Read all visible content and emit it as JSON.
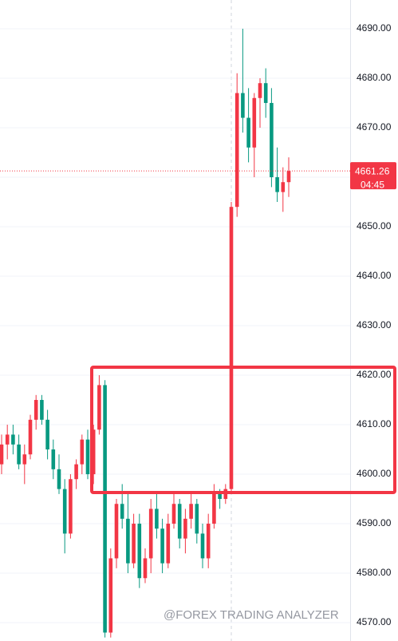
{
  "chart_data": {
    "type": "candlestick",
    "ylim": [
      4566.3,
      4695.8
    ],
    "yticks": [
      {
        "value": 4570,
        "label": "4570.00"
      },
      {
        "value": 4580,
        "label": "4580.00"
      },
      {
        "value": 4590,
        "label": "4590.00"
      },
      {
        "value": 4600,
        "label": "4600.00"
      },
      {
        "value": 4610,
        "label": "4610.00"
      },
      {
        "value": 4620,
        "label": "4620.00"
      },
      {
        "value": 4630,
        "label": "4630.00"
      },
      {
        "value": 4640,
        "label": "4640.00"
      },
      {
        "value": 4650,
        "label": "4650.00"
      },
      {
        "value": 4660,
        "label": "4660.00"
      },
      {
        "value": 4670,
        "label": "4670.00"
      },
      {
        "value": 4680,
        "label": "4680.00"
      },
      {
        "value": 4690,
        "label": "4690.00"
      }
    ],
    "grid": true,
    "up_color": "#f23645",
    "down_color": "#089981",
    "open": [
      4602,
      4606,
      4608,
      4606,
      4602,
      4604,
      4611,
      4615,
      4611,
      4605,
      4601,
      4597,
      4588,
      4599,
      4602,
      4607,
      4600,
      4609,
      4618,
      4568,
      4583,
      4594,
      4591,
      4582,
      4590,
      4579,
      4583,
      4593,
      4589,
      4582,
      4590,
      4594,
      4587,
      4591,
      4594,
      4588,
      4583,
      4590,
      4596,
      4595,
      4597,
      4654,
      4677,
      4672,
      4666,
      4676,
      4679,
      4675,
      4660,
      4657,
      4659
    ],
    "high": [
      4608,
      4610,
      4610,
      4608,
      4606,
      4612,
      4616,
      4616,
      4613,
      4607,
      4604,
      4599,
      4600,
      4603,
      4608,
      4609,
      4610,
      4620,
      4619,
      4585,
      4595,
      4598,
      4596,
      4592,
      4592,
      4585,
      4595,
      4596,
      4591,
      4592,
      4596,
      4595,
      4593,
      4596,
      4595,
      4590,
      4592,
      4598,
      4597,
      4598,
      4655,
      4681,
      4690,
      4678,
      4677,
      4680,
      4682,
      4678,
      4666,
      4662,
      4664
    ],
    "low": [
      4600,
      4603,
      4604,
      4601,
      4598,
      4603,
      4609,
      4610,
      4603,
      4599,
      4596,
      4584,
      4587,
      4597,
      4600,
      4599,
      4598,
      4608,
      4567,
      4567,
      4581,
      4589,
      4580,
      4581,
      4577,
      4578,
      4580,
      4587,
      4580,
      4581,
      4589,
      4585,
      4584,
      4589,
      4586,
      4581,
      4581,
      4589,
      4593,
      4594,
      4596,
      4652,
      4669,
      4663,
      4660,
      4670,
      4672,
      4658,
      4655,
      4653,
      4656
    ],
    "close": [
      4606,
      4608,
      4606,
      4602,
      4604,
      4611,
      4615,
      4611,
      4605,
      4601,
      4597,
      4588,
      4599,
      4602,
      4607,
      4600,
      4609,
      4618,
      4568,
      4583,
      4594,
      4591,
      4582,
      4590,
      4579,
      4583,
      4593,
      4589,
      4582,
      4590,
      4594,
      4587,
      4591,
      4594,
      4588,
      4583,
      4590,
      4596,
      4595,
      4597,
      4654,
      4677,
      4672,
      4666,
      4676,
      4679,
      4675,
      4660,
      4657,
      4659,
      4661.26
    ],
    "last_price": {
      "value": 4661.26,
      "label": "4661.26"
    },
    "countdown": "04:45",
    "watermark": "@FOREX TRADING ANALYZER"
  }
}
